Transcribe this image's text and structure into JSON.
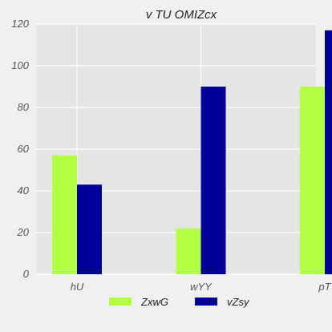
{
  "chart_data": {
    "type": "bar",
    "title": "v TU OMIZcx",
    "categories": [
      "hU",
      "wYY",
      "pT"
    ],
    "series": [
      {
        "name": "ZxwG",
        "values": [
          57,
          22,
          90
        ],
        "color": "#b3ff44"
      },
      {
        "name": "vZsy",
        "values": [
          43,
          90,
          117
        ],
        "color": "#000099"
      }
    ],
    "ylim": [
      0,
      120
    ],
    "yticks": [
      0,
      20,
      40,
      60,
      80,
      100,
      120
    ],
    "grid": true,
    "legend_position": "bottom-center",
    "plot_background": "#e5e5e5",
    "grid_color": "#ffffff"
  }
}
